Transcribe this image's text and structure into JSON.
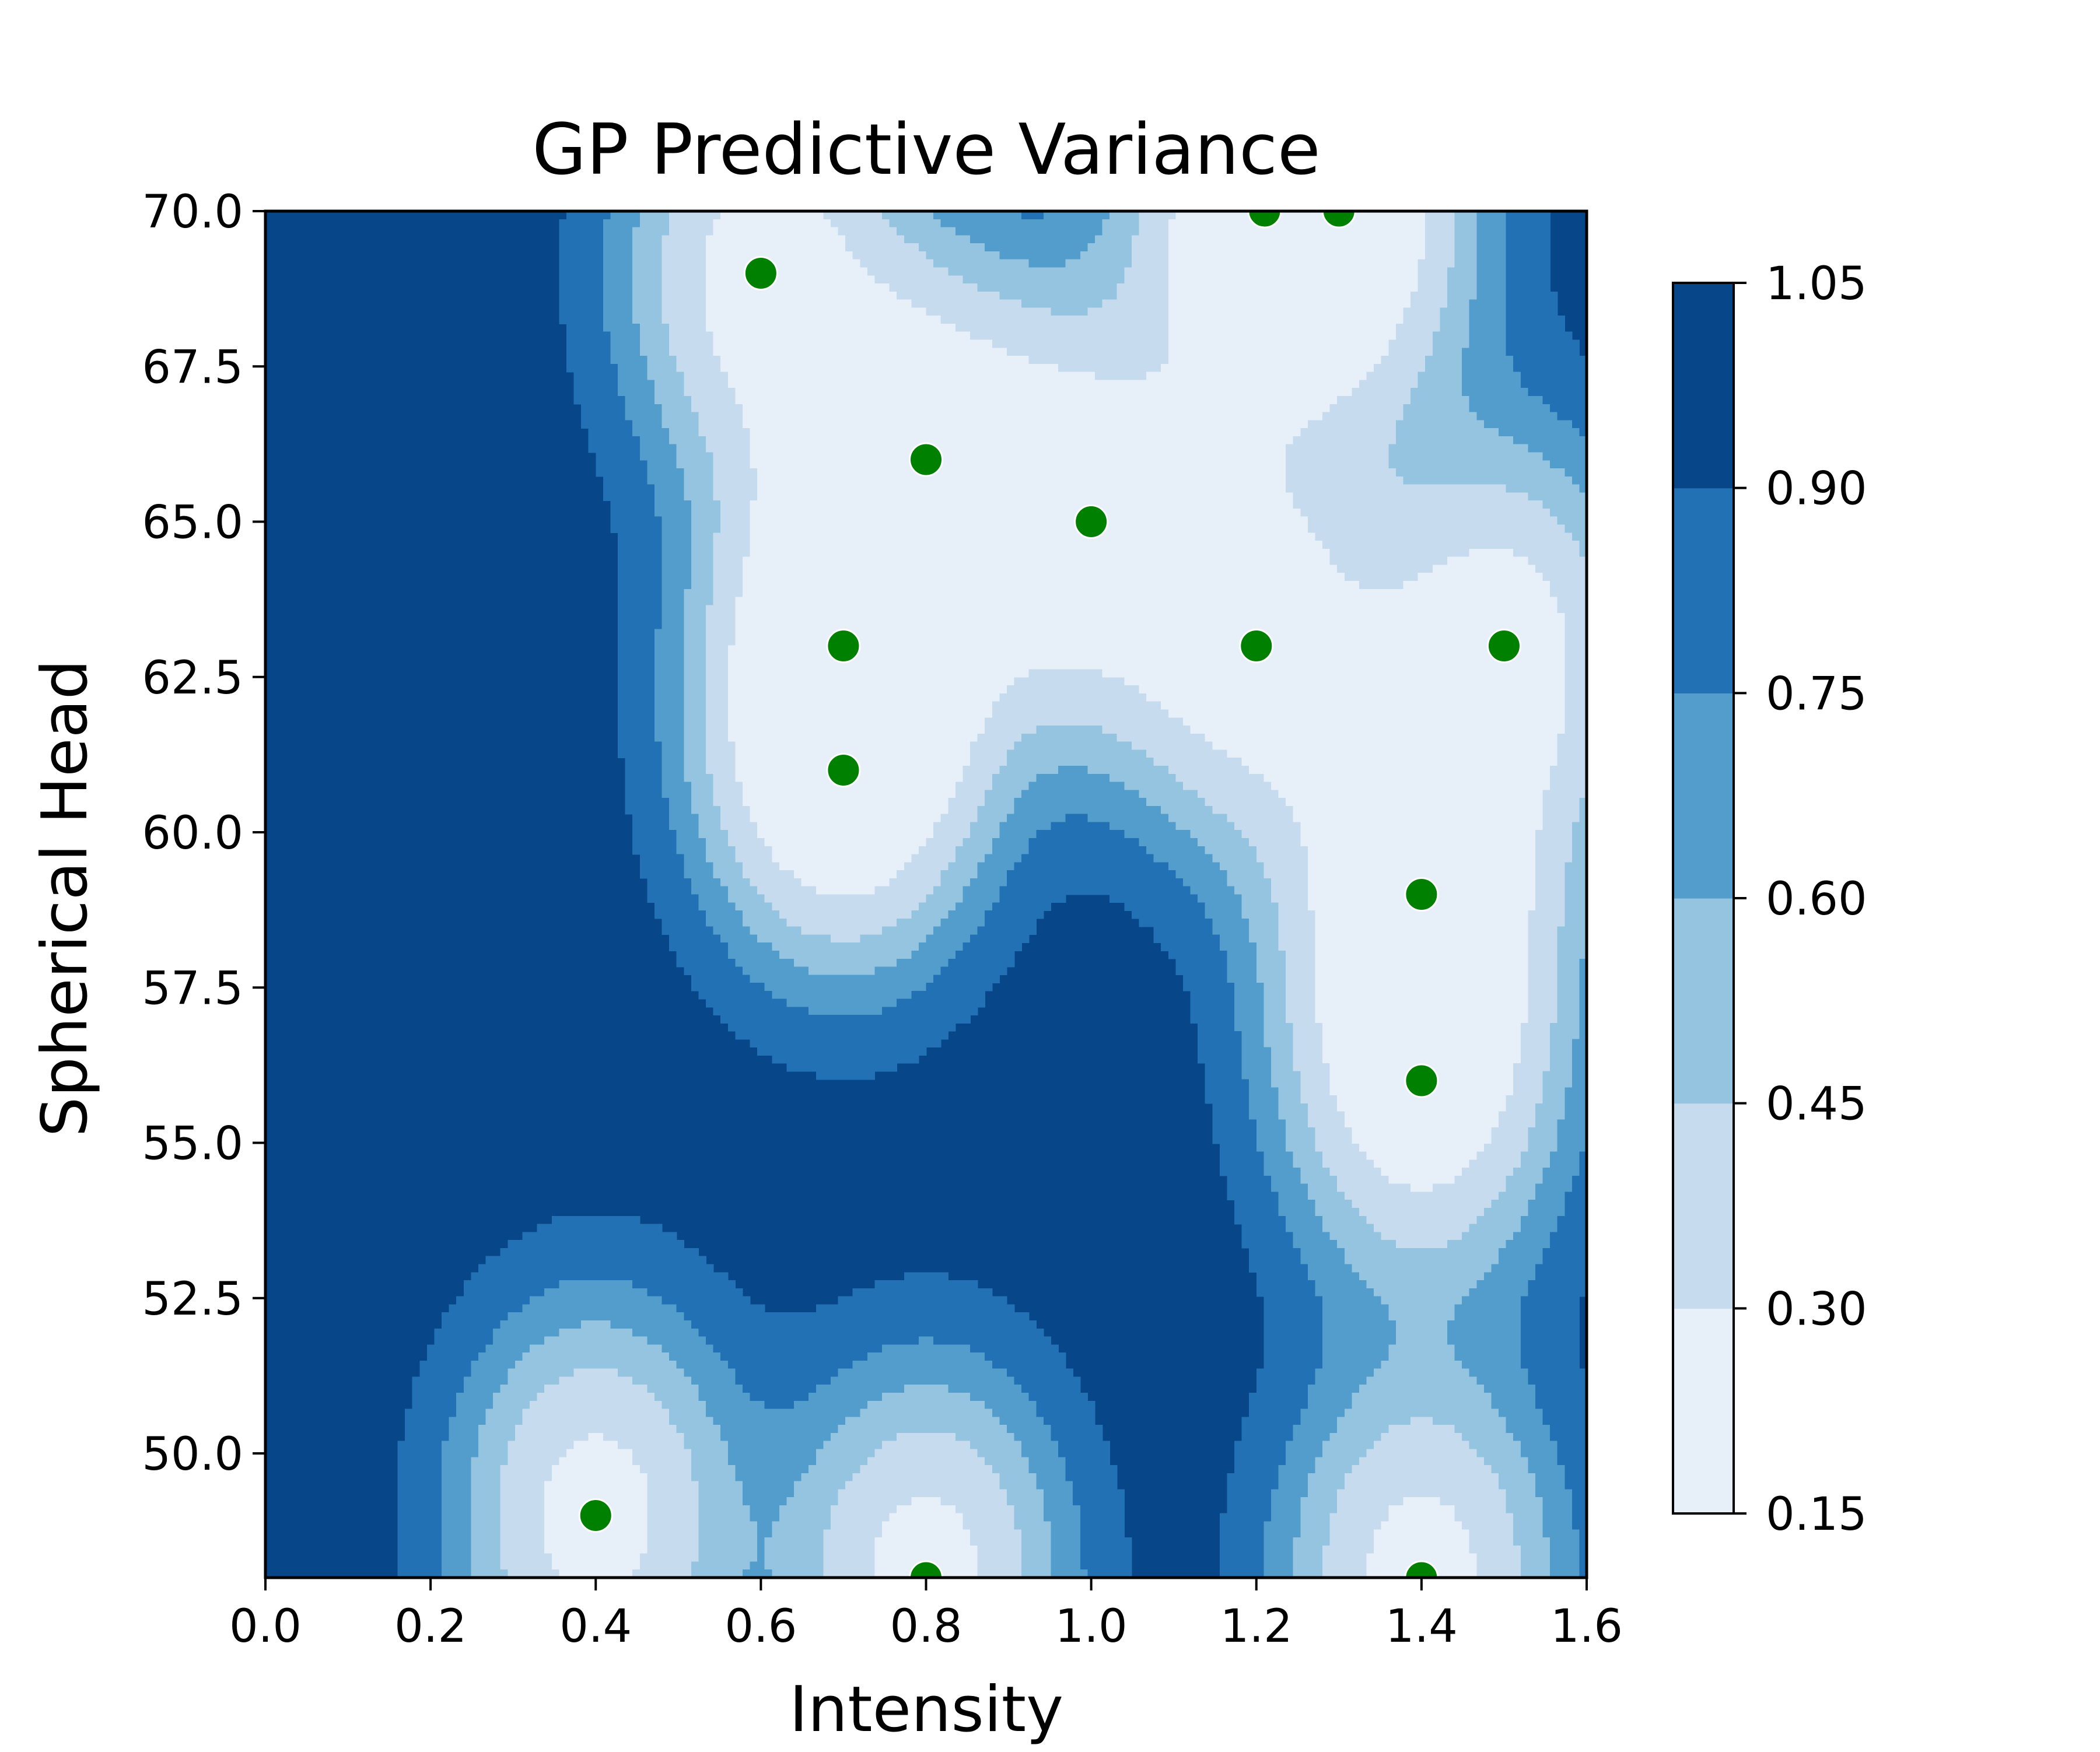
{
  "chart_data": {
    "type": "heatmap",
    "subtype": "filled-contour",
    "title": "GP Predictive Variance",
    "xlabel": "Intensity",
    "ylabel": "Spherical Head",
    "xlim": [
      0.0,
      1.6
    ],
    "ylim": [
      48.0,
      70.0
    ],
    "xticks": [
      "0.0",
      "0.2",
      "0.4",
      "0.6",
      "0.8",
      "1.0",
      "1.2",
      "1.4",
      "1.6"
    ],
    "yticks": [
      "50.0",
      "52.5",
      "55.0",
      "57.5",
      "60.0",
      "62.5",
      "65.0",
      "67.5",
      "70.0"
    ],
    "colorbar": {
      "levels": [
        0.15,
        0.3,
        0.45,
        0.6,
        0.75,
        0.9,
        1.05
      ],
      "tick_labels": [
        "0.15",
        "0.30",
        "0.45",
        "0.60",
        "0.75",
        "0.90",
        "1.05"
      ],
      "colormap": "Blues",
      "colors": [
        "#e7eff9",
        "#c7dbef",
        "#94c4df",
        "#529dcc",
        "#2271b4",
        "#08468a"
      ]
    },
    "observations": {
      "marker_color": "#008000",
      "points": [
        {
          "x": 0.4,
          "y": 49.0
        },
        {
          "x": 0.8,
          "y": 48.0
        },
        {
          "x": 1.4,
          "y": 48.0
        },
        {
          "x": 0.6,
          "y": 69.0
        },
        {
          "x": 0.8,
          "y": 66.0
        },
        {
          "x": 1.0,
          "y": 65.0
        },
        {
          "x": 0.7,
          "y": 63.0
        },
        {
          "x": 0.7,
          "y": 61.0
        },
        {
          "x": 1.2,
          "y": 63.0
        },
        {
          "x": 1.5,
          "y": 63.0
        },
        {
          "x": 1.4,
          "y": 59.0
        },
        {
          "x": 1.4,
          "y": 56.0
        },
        {
          "x": 1.21,
          "y": 70.0
        },
        {
          "x": 1.3,
          "y": 70.0
        }
      ]
    },
    "grid": false,
    "legend": "none"
  }
}
